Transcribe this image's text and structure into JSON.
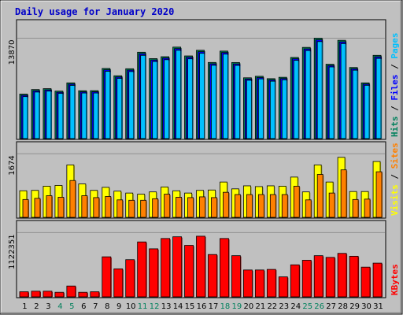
{
  "chart_data": {
    "type": "bar",
    "title": "Daily usage for January 2020",
    "categories": [
      "1",
      "2",
      "3",
      "4",
      "5",
      "6",
      "7",
      "8",
      "9",
      "10",
      "11",
      "12",
      "13",
      "14",
      "15",
      "16",
      "17",
      "18",
      "19",
      "20",
      "21",
      "22",
      "23",
      "24",
      "25",
      "26",
      "27",
      "28",
      "29",
      "30",
      "31"
    ],
    "weekend_days": [
      "4",
      "5",
      "11",
      "12",
      "18",
      "19",
      "25",
      "26"
    ],
    "panels": [
      {
        "id": "hits",
        "y_tick_label": "13870",
        "ylim": [
          0,
          13870
        ],
        "labels_right": [
          {
            "text": "Hits",
            "color": "#00805c"
          },
          {
            "text": " / ",
            "color": "#000000"
          },
          {
            "text": "Files",
            "color": "#0000ff"
          },
          {
            "text": " / ",
            "color": "#000000"
          },
          {
            "text": "Pages",
            "color": "#00c0ff"
          }
        ],
        "series": [
          {
            "name": "Hits",
            "color": "#00805c",
            "values": [
              6150,
              6780,
              6900,
              6560,
              7700,
              6610,
              6620,
              9690,
              8680,
              9650,
              11930,
              11050,
              11310,
              12640,
              11420,
              12200,
              10520,
              12090,
              10510,
              8400,
              8610,
              8280,
              8470,
              11210,
              12600,
              13870,
              10270,
              13580,
              9820,
              7700,
              11500
            ]
          },
          {
            "name": "Files",
            "color": "#0000ff",
            "values": [
              5980,
              6600,
              6730,
              6400,
              7520,
              6450,
              6460,
              9500,
              8500,
              9460,
              11720,
              10860,
              11120,
              12430,
              11230,
              12000,
              10330,
              11890,
              10310,
              8230,
              8430,
              8100,
              8300,
              11020,
              12390,
              13650,
              10090,
              13360,
              9640,
              7530,
              11300
            ]
          },
          {
            "name": "Pages",
            "color": "#00c0ff",
            "values": [
              5800,
              6430,
              6560,
              6240,
              7350,
              6300,
              6300,
              9300,
              8320,
              9260,
              11500,
              10650,
              10900,
              12200,
              11020,
              11780,
              10130,
              11670,
              10110,
              8060,
              8250,
              7930,
              8120,
              10810,
              12160,
              13400,
              9900,
              13120,
              9450,
              7360,
              11080
            ]
          }
        ]
      },
      {
        "id": "visits",
        "y_tick_label": "1674",
        "ylim": [
          0,
          1674
        ],
        "labels_right": [
          {
            "text": "Visits",
            "color": "#ffff00"
          },
          {
            "text": " / ",
            "color": "#000000"
          },
          {
            "text": "Sites",
            "color": "#ff8000"
          }
        ],
        "series": [
          {
            "name": "Visits",
            "color": "#ffff00",
            "values": [
              700,
              710,
              820,
              840,
              1380,
              880,
              710,
              790,
              690,
              640,
              610,
              670,
              800,
              700,
              640,
              710,
              720,
              930,
              750,
              830,
              810,
              830,
              820,
              1060,
              670,
              1380,
              930,
              1580,
              680,
              680,
              1470
            ]
          },
          {
            "name": "Sites",
            "color": "#ff8000",
            "values": [
              470,
              500,
              570,
              530,
              970,
              570,
              520,
              550,
              460,
              450,
              450,
              490,
              610,
              530,
              520,
              540,
              520,
              660,
              600,
              600,
              600,
              600,
              600,
              820,
              460,
              1130,
              640,
              1250,
              470,
              480,
              1200
            ]
          }
        ]
      },
      {
        "id": "kbytes",
        "y_tick_label": "1122351",
        "ylim": [
          0,
          1122351
        ],
        "labels_right": [
          {
            "text": "KBytes",
            "color": "#ff0000"
          }
        ],
        "series": [
          {
            "name": "KBytes",
            "color": "#ff0000",
            "values": [
              90000,
              100000,
              100000,
              80000,
              190000,
              80000,
              90000,
              700000,
              490000,
              650000,
              960000,
              840000,
              1020000,
              1050000,
              900000,
              1060000,
              740000,
              1020000,
              720000,
              470000,
              470000,
              480000,
              350000,
              560000,
              640000,
              720000,
              690000,
              760000,
              710000,
              520000,
              590000
            ]
          }
        ]
      }
    ],
    "colors": {
      "background": "#c0c0c0",
      "frame_light": "#ffffff",
      "frame_dark": "#808080",
      "gridline": "#909090",
      "weekday_label": "#000000",
      "weekend_label": "#00805c"
    }
  }
}
